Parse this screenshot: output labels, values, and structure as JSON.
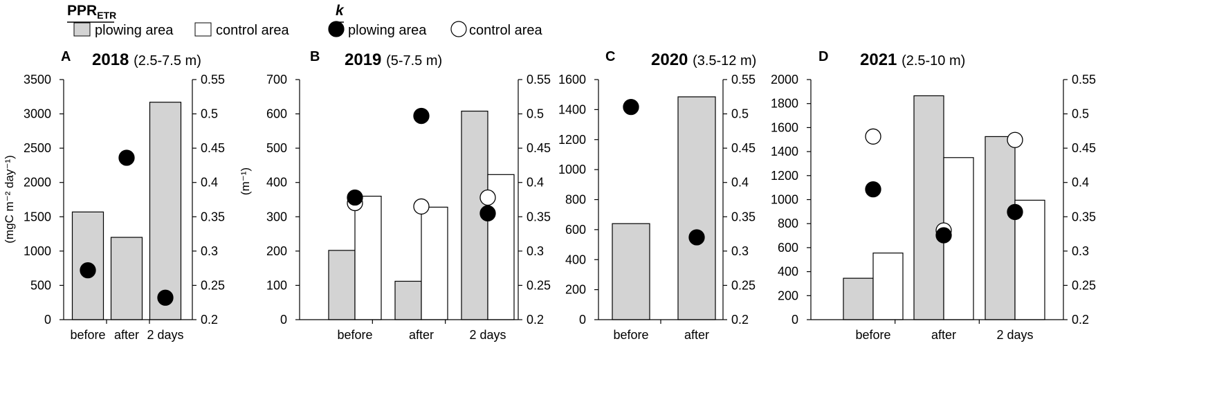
{
  "legend": {
    "ppr_label": "PPR",
    "ppr_subscript": "ETR",
    "ppr_plowing": "plowing area",
    "ppr_control": "control area",
    "k_label": "k",
    "k_plowing": "plowing area",
    "k_control": "control area"
  },
  "left_axis_title": "(mgC m⁻² day⁻¹)",
  "right_axis_title": "(m⁻¹)",
  "colors": {
    "plowing_bar": "#d3d3d3",
    "control_bar": "#ffffff",
    "outline": "#000000"
  },
  "chart_data": [
    {
      "type": "bar",
      "panel_letter": "A",
      "year": "2018",
      "depth": "(2.5-7.5 m)",
      "categories": [
        "before",
        "after",
        "2 days"
      ],
      "series": [
        {
          "name": "PPR plowing area",
          "values": [
            1570,
            1200,
            3170
          ]
        },
        {
          "name": "PPR control area",
          "values": [
            null,
            null,
            null
          ]
        },
        {
          "name": "k plowing area",
          "axis": "right",
          "values": [
            0.272,
            0.436,
            0.232
          ]
        },
        {
          "name": "k control area",
          "axis": "right",
          "values": [
            null,
            null,
            null
          ]
        }
      ],
      "ylim": [
        0,
        3500
      ],
      "yticks": [
        0,
        500,
        1000,
        1500,
        2000,
        2500,
        3000,
        3500
      ],
      "y2lim": [
        0.2,
        0.55
      ],
      "y2ticks": [
        0.2,
        0.25,
        0.3,
        0.35,
        0.4,
        0.45,
        0.5,
        0.55
      ]
    },
    {
      "type": "bar",
      "panel_letter": "B",
      "year": "2019",
      "depth": "(5-7.5 m)",
      "categories": [
        "before",
        "after",
        "2 days"
      ],
      "series": [
        {
          "name": "PPR plowing area",
          "values": [
            202,
            112,
            608
          ]
        },
        {
          "name": "PPR control area",
          "values": [
            360,
            328,
            423
          ]
        },
        {
          "name": "k plowing area",
          "axis": "right",
          "values": [
            0.378,
            0.497,
            0.355
          ]
        },
        {
          "name": "k control area",
          "axis": "right",
          "values": [
            0.37,
            0.365,
            0.378
          ]
        }
      ],
      "ylim": [
        0,
        700
      ],
      "yticks": [
        0,
        100,
        200,
        300,
        400,
        500,
        600,
        700
      ],
      "y2lim": [
        0.2,
        0.55
      ],
      "y2ticks": [
        0.2,
        0.25,
        0.3,
        0.35,
        0.4,
        0.45,
        0.5,
        0.55
      ]
    },
    {
      "type": "bar",
      "panel_letter": "C",
      "year": "2020",
      "depth": "(3.5-12 m)",
      "categories": [
        "before",
        "after"
      ],
      "series": [
        {
          "name": "PPR plowing area",
          "values": [
            640,
            1485
          ]
        },
        {
          "name": "k plowing area",
          "axis": "right",
          "values": [
            0.51,
            0.32
          ]
        }
      ],
      "ylim": [
        0,
        1600
      ],
      "yticks": [
        0,
        200,
        400,
        600,
        800,
        1000,
        1200,
        1400,
        1600
      ],
      "y2lim": [
        0.2,
        0.55
      ],
      "y2ticks": [
        0.2,
        0.25,
        0.3,
        0.35,
        0.4,
        0.45,
        0.5,
        0.55
      ]
    },
    {
      "type": "bar",
      "panel_letter": "D",
      "year": "2021",
      "depth": "(2.5-10 m)",
      "categories": [
        "before",
        "after",
        "2 days"
      ],
      "series": [
        {
          "name": "PPR plowing area",
          "values": [
            345,
            1865,
            1525
          ]
        },
        {
          "name": "PPR control area",
          "values": [
            555,
            1350,
            995
          ]
        },
        {
          "name": "k plowing area",
          "axis": "right",
          "values": [
            0.39,
            0.323,
            0.357
          ]
        },
        {
          "name": "k control area",
          "axis": "right",
          "values": [
            0.467,
            0.33,
            0.462
          ]
        }
      ],
      "ylim": [
        0,
        2000
      ],
      "yticks": [
        0,
        200,
        400,
        600,
        800,
        1000,
        1200,
        1400,
        1600,
        1800,
        2000
      ],
      "y2lim": [
        0.2,
        0.55
      ],
      "y2ticks": [
        0.2,
        0.25,
        0.3,
        0.35,
        0.4,
        0.45,
        0.5,
        0.55
      ]
    }
  ]
}
